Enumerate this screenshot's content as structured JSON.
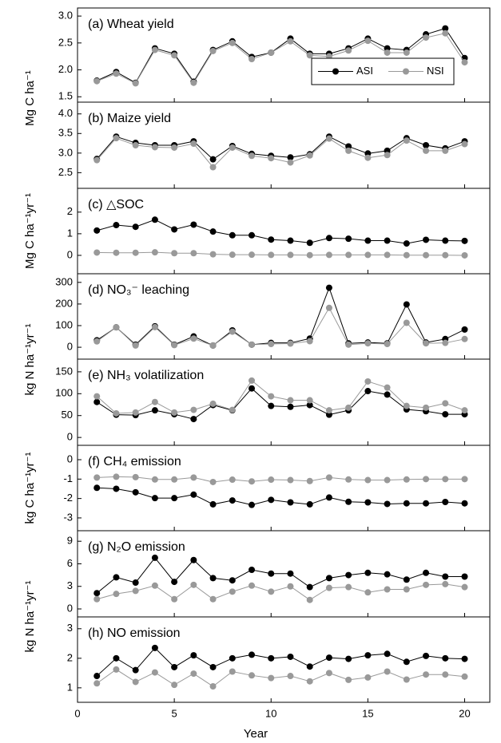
{
  "chart_data": [
    {
      "type": "line",
      "title": "(a) Wheat yield",
      "ylabel": "Mg C ha⁻¹",
      "legend": "lower right",
      "ylim": [
        1.4,
        3.15
      ],
      "yticks": [
        1.5,
        {
          "value": 2,
          "label": "2.0"
        },
        2.5,
        {
          "value": 3,
          "label": "3.0"
        }
      ],
      "x": [
        1,
        2,
        3,
        4,
        5,
        6,
        7,
        8,
        9,
        10,
        11,
        12,
        13,
        14,
        15,
        16,
        17,
        18,
        19,
        20
      ],
      "series": [
        {
          "name": "ASI",
          "color": "#000000",
          "values": [
            1.8,
            1.96,
            1.76,
            2.4,
            2.3,
            1.78,
            2.37,
            2.53,
            2.24,
            2.32,
            2.58,
            2.3,
            2.3,
            2.4,
            2.58,
            2.4,
            2.37,
            2.66,
            2.77,
            2.22
          ]
        },
        {
          "name": "NSI",
          "color": "#999999",
          "values": [
            1.79,
            1.93,
            1.75,
            2.37,
            2.27,
            1.76,
            2.35,
            2.5,
            2.2,
            2.32,
            2.53,
            2.27,
            2.25,
            2.36,
            2.54,
            2.32,
            2.32,
            2.6,
            2.68,
            2.14
          ]
        }
      ]
    },
    {
      "type": "line",
      "title": "(b)  Maize yield",
      "ylim": [
        2.1,
        4.3
      ],
      "yticks": [
        2.5,
        {
          "value": 3,
          "label": "3.0"
        },
        3.5,
        {
          "value": 4,
          "label": "4.0"
        }
      ],
      "x": [
        1,
        2,
        3,
        4,
        5,
        6,
        7,
        8,
        9,
        10,
        11,
        12,
        13,
        14,
        15,
        16,
        17,
        18,
        19,
        20
      ],
      "series": [
        {
          "color": "#000000",
          "values": [
            2.85,
            3.42,
            3.26,
            3.2,
            3.2,
            3.3,
            2.84,
            3.18,
            2.98,
            2.93,
            2.89,
            2.97,
            3.42,
            3.17,
            2.99,
            3.06,
            3.38,
            3.2,
            3.12,
            3.3
          ]
        },
        {
          "color": "#999999",
          "values": [
            2.82,
            3.38,
            3.2,
            3.15,
            3.14,
            3.24,
            2.64,
            3.14,
            2.93,
            2.87,
            2.76,
            2.94,
            3.37,
            3.06,
            2.88,
            2.95,
            3.32,
            3.06,
            3.06,
            3.23
          ]
        }
      ]
    },
    {
      "type": "line",
      "title": "(c) △SOC",
      "ylabel": "Mg C ha⁻¹yr⁻¹",
      "ylim": [
        -0.85,
        3.1
      ],
      "yticks": [
        0,
        1,
        2
      ],
      "x": [
        1,
        2,
        3,
        4,
        5,
        6,
        7,
        8,
        9,
        10,
        11,
        12,
        13,
        14,
        15,
        16,
        17,
        18,
        19,
        20
      ],
      "series": [
        {
          "color": "#000000",
          "values": [
            1.15,
            1.4,
            1.32,
            1.65,
            1.2,
            1.42,
            1.1,
            0.93,
            0.93,
            0.73,
            0.68,
            0.58,
            0.8,
            0.77,
            0.68,
            0.68,
            0.55,
            0.72,
            0.68,
            0.67
          ]
        },
        {
          "color": "#999999",
          "values": [
            0.13,
            0.12,
            0.12,
            0.14,
            0.1,
            0.1,
            0.05,
            0.03,
            0.03,
            0.02,
            0.02,
            0.01,
            0.02,
            0.02,
            0.02,
            0.02,
            0.01,
            0.01,
            0.01,
            0
          ]
        }
      ]
    },
    {
      "type": "line",
      "title": "(d) NO₃⁻ leaching",
      "ylabel": "kg N ha⁻¹yr⁻¹",
      "ylim": [
        -55,
        340
      ],
      "yticks": [
        0,
        100,
        200,
        300
      ],
      "x": [
        1,
        2,
        3,
        4,
        5,
        6,
        7,
        8,
        9,
        10,
        11,
        12,
        13,
        14,
        15,
        16,
        17,
        18,
        19,
        20
      ],
      "series": [
        {
          "color": "#000000",
          "values": [
            32,
            92,
            12,
            97,
            12,
            50,
            8,
            78,
            12,
            20,
            20,
            40,
            275,
            18,
            22,
            18,
            198,
            22,
            38,
            82
          ]
        },
        {
          "color": "#999999",
          "values": [
            27,
            92,
            8,
            93,
            10,
            40,
            8,
            72,
            12,
            15,
            17,
            28,
            182,
            12,
            18,
            15,
            113,
            18,
            20,
            38
          ]
        }
      ]
    },
    {
      "type": "line",
      "title": "(e) NH₃ volatilization",
      "ylim": [
        -18,
        179
      ],
      "yticks": [
        0,
        50,
        100,
        150
      ],
      "x": [
        1,
        2,
        3,
        4,
        5,
        6,
        7,
        8,
        9,
        10,
        11,
        12,
        13,
        14,
        15,
        16,
        17,
        18,
        19,
        20
      ],
      "series": [
        {
          "color": "#000000",
          "values": [
            81,
            52,
            51,
            62,
            53,
            42,
            74,
            62,
            112,
            72,
            70,
            74,
            52,
            62,
            106,
            98,
            64,
            60,
            53,
            53
          ]
        },
        {
          "color": "#999999",
          "values": [
            94,
            55,
            57,
            81,
            57,
            63,
            77,
            63,
            130,
            94,
            85,
            85,
            62,
            68,
            128,
            114,
            72,
            68,
            78,
            62
          ]
        }
      ]
    },
    {
      "type": "line",
      "title": "(f) CH₄ emission",
      "ylabel": "kg C ha⁻¹yr⁻¹",
      "ylim": [
        -3.66,
        0.74
      ],
      "yticks": [
        0,
        -1,
        -2,
        -3
      ],
      "x": [
        1,
        2,
        3,
        4,
        5,
        6,
        7,
        8,
        9,
        10,
        11,
        12,
        13,
        14,
        15,
        16,
        17,
        18,
        19,
        20
      ],
      "series": [
        {
          "color": "#000000",
          "values": [
            -1.45,
            -1.5,
            -1.68,
            -1.98,
            -1.98,
            -1.8,
            -2.3,
            -2.1,
            -2.33,
            -2.07,
            -2.2,
            -2.3,
            -1.95,
            -2.17,
            -2.2,
            -2.28,
            -2.25,
            -2.25,
            -2.18,
            -2.25
          ]
        },
        {
          "color": "#999999",
          "values": [
            -0.92,
            -0.88,
            -0.9,
            -1.02,
            -1.02,
            -0.92,
            -1.15,
            -1.03,
            -1.12,
            -1.03,
            -1.05,
            -1.1,
            -0.92,
            -1.02,
            -1.05,
            -1.05,
            -1.02,
            -1,
            -1,
            -1
          ]
        }
      ]
    },
    {
      "type": "line",
      "title": "(g) N₂O emission",
      "ylabel": "kg N ha⁻¹yr⁻¹",
      "ylim": [
        -1.06,
        10.4
      ],
      "yticks": [
        0,
        3,
        6,
        9
      ],
      "x": [
        1,
        2,
        3,
        4,
        5,
        6,
        7,
        8,
        9,
        10,
        11,
        12,
        13,
        14,
        15,
        16,
        17,
        18,
        19,
        20
      ],
      "series": [
        {
          "color": "#000000",
          "values": [
            2.1,
            4.2,
            3.5,
            6.8,
            3.6,
            6.5,
            4.1,
            3.8,
            5.2,
            4.7,
            4.7,
            2.9,
            4.1,
            4.5,
            4.8,
            4.6,
            3.9,
            4.8,
            4.3,
            4.3
          ]
        },
        {
          "color": "#999999",
          "values": [
            1.3,
            2,
            2.4,
            3.1,
            1.3,
            3.2,
            1.3,
            2.3,
            3.1,
            2.3,
            3,
            1.2,
            2.8,
            2.9,
            2.2,
            2.6,
            2.6,
            3.2,
            3.3,
            2.9
          ]
        }
      ]
    },
    {
      "type": "line",
      "title": "(h) NO emission",
      "xlabel": "Year",
      "xlim": [
        0,
        21.3
      ],
      "xticks": [
        0,
        5,
        10,
        15,
        20
      ],
      "ylim": [
        0.51,
        3.4
      ],
      "yticks": [
        1,
        2,
        3
      ],
      "x": [
        1,
        2,
        3,
        4,
        5,
        6,
        7,
        8,
        9,
        10,
        11,
        12,
        13,
        14,
        15,
        16,
        17,
        18,
        19,
        20
      ],
      "series": [
        {
          "color": "#000000",
          "values": [
            1.4,
            2,
            1.6,
            2.35,
            1.7,
            2.1,
            1.7,
            2,
            2.12,
            2,
            2.05,
            1.72,
            2.02,
            1.98,
            2.1,
            2.15,
            1.88,
            2.08,
            2,
            1.98
          ]
        },
        {
          "color": "#999999",
          "values": [
            1.15,
            1.62,
            1.2,
            1.52,
            1.1,
            1.48,
            1.05,
            1.55,
            1.42,
            1.33,
            1.4,
            1.22,
            1.5,
            1.27,
            1.35,
            1.55,
            1.28,
            1.45,
            1.45,
            1.38
          ]
        }
      ]
    }
  ]
}
